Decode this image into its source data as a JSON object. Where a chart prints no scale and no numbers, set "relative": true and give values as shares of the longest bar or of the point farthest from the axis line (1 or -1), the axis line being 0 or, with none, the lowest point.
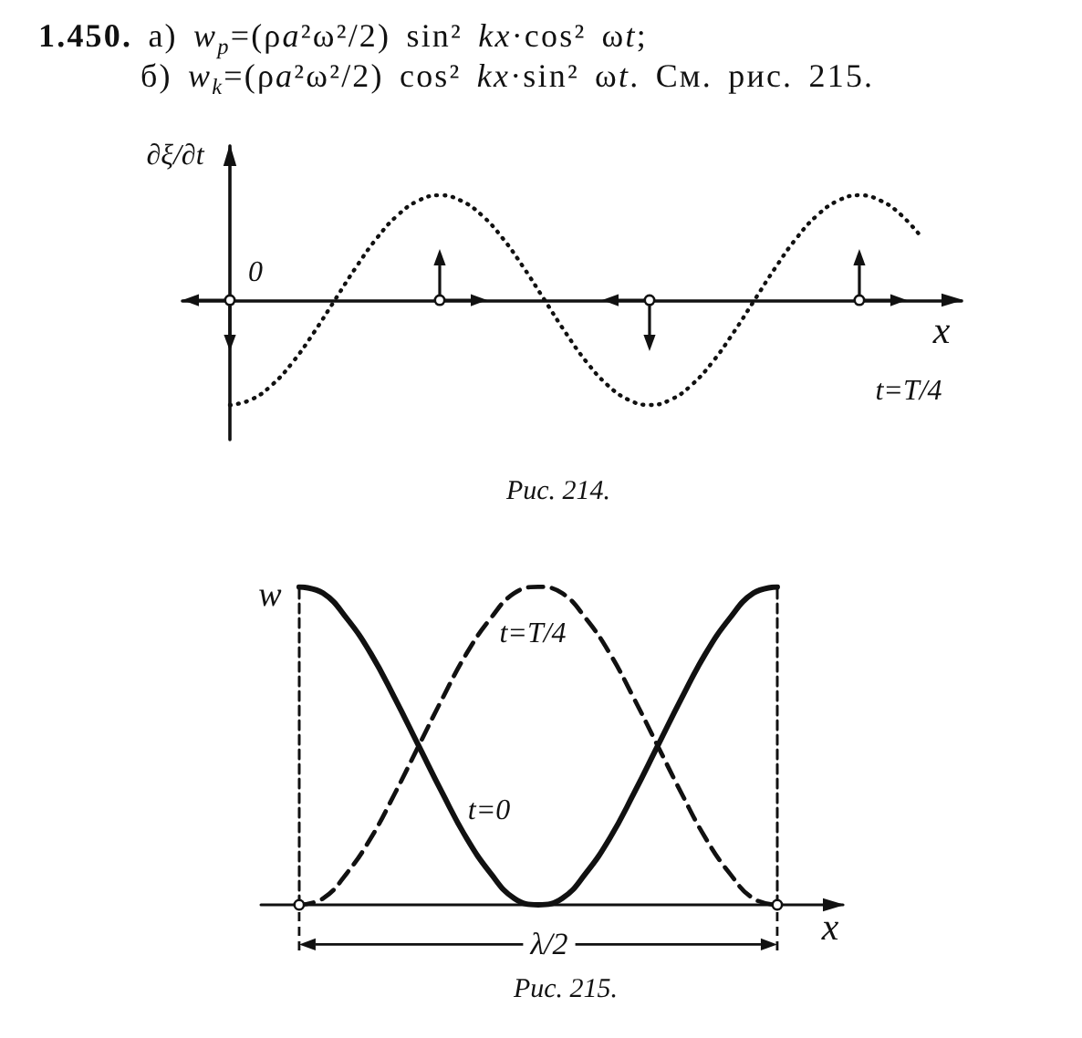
{
  "chart_data": [
    {
      "type": "line",
      "title": "1.450. а) w$_{p}$=(ρa²ω²/2) sin² kx·cos² ωt;",
      "subtitle": "б) w$_{k}$=(ρa²ω²/2) cos² kx·sin² ωt. См. рис. 215.",
      "xlabel": "x",
      "ylabel": "∂ξ/∂t",
      "annotations": [
        "0",
        "t=T/4",
        "Рис. 214."
      ],
      "relative": true,
      "marker": "none",
      "categories": [
        null,
        null,
        null,
        null,
        null,
        null,
        null,
        null,
        null,
        null,
        null,
        null,
        null,
        null,
        null,
        null,
        null,
        null,
        null,
        null,
        null,
        null,
        null,
        null,
        null,
        null,
        null,
        null,
        null,
        null,
        null,
        null,
        null,
        null
      ],
      "series": [
        {
          "color": "#111111",
          "line_style": "dotted",
          "values": [
            -1,
            -0.95,
            -0.81,
            -0.59,
            -0.31,
            0,
            0.31,
            0.59,
            0.81,
            0.95,
            1,
            0.95,
            0.81,
            0.59,
            0.31,
            0,
            -0.31,
            -0.59,
            -0.81,
            -0.95,
            -1,
            -0.95,
            -0.81,
            -0.59,
            -0.31,
            0,
            0.31,
            0.59,
            0.81,
            0.95,
            1,
            0.95,
            0.81,
            0.59
          ]
        }
      ]
    },
    {
      "type": "line",
      "xlabel": "x",
      "ylabel": "w",
      "annotations": [
        "λ/2",
        "Рис. 215."
      ],
      "relative": true,
      "marker": "none",
      "categories": [
        null,
        null,
        null,
        null,
        null,
        null,
        null,
        null,
        null,
        null,
        null,
        null,
        null,
        null,
        null,
        null,
        null,
        null,
        null,
        null,
        null
      ],
      "series": [
        {
          "name": "t=0",
          "color": "#111111",
          "line_style": "solid",
          "values": [
            1,
            0.98,
            0.9,
            0.79,
            0.65,
            0.5,
            0.35,
            0.21,
            0.1,
            0.02,
            0,
            0.02,
            0.1,
            0.21,
            0.35,
            0.5,
            0.65,
            0.79,
            0.9,
            0.98,
            1
          ]
        },
        {
          "name": "t=T/4",
          "color": "#111111",
          "line_style": "dashed",
          "values": [
            0,
            0.02,
            0.1,
            0.21,
            0.35,
            0.5,
            0.65,
            0.79,
            0.9,
            0.98,
            1,
            0.98,
            0.9,
            0.79,
            0.65,
            0.5,
            0.35,
            0.21,
            0.1,
            0.02,
            0
          ]
        }
      ]
    }
  ]
}
